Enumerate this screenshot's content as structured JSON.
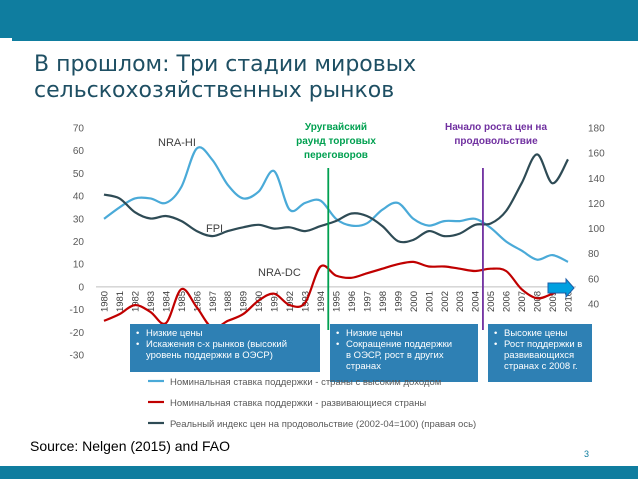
{
  "slide": {
    "title": "В прошлом: Три стадии мировых сельскохозяйственных рынков",
    "source": "Source: Nelgen (2015) and FAO",
    "page": "3"
  },
  "colors": {
    "accent": "#0f7d9f",
    "title": "#1e4f63",
    "series_high": "#4aaad8",
    "series_dev": "#c00000",
    "series_fpi": "#2e4b55",
    "annotation_green": "#00a050",
    "annotation_purple": "#7030a0",
    "box_fill": "#2e80b4"
  },
  "chart_data": {
    "type": "line",
    "x": [
      1980,
      1981,
      1982,
      1983,
      1984,
      1985,
      1986,
      1987,
      1988,
      1989,
      1990,
      1991,
      1992,
      1993,
      1994,
      1995,
      1996,
      1997,
      1998,
      1999,
      2000,
      2001,
      2002,
      2003,
      2004,
      2005,
      2006,
      2007,
      2008,
      2009,
      2010
    ],
    "x_tick_labels": [
      "1980",
      "1981",
      "1982",
      "1983",
      "1984",
      "1985",
      "1986",
      "1987",
      "1988",
      "1989",
      "1990",
      "1991",
      "1992",
      "1993",
      "1994",
      "1995",
      "1996",
      "1997",
      "1998",
      "1999",
      "2000",
      "2001",
      "2002",
      "2003",
      "2004",
      "2005",
      "2006",
      "2007",
      "2008",
      "2009",
      "2010"
    ],
    "y_left": {
      "range": [
        -30,
        70
      ],
      "ticks": [
        -30,
        -20,
        -10,
        0,
        10,
        20,
        30,
        40,
        50,
        60,
        70
      ],
      "tick_labels": [
        "-30",
        "-20",
        "-10",
        "0",
        "10",
        "20",
        "30",
        "40",
        "50",
        "60",
        "70"
      ]
    },
    "y_right": {
      "range": [
        40,
        180
      ],
      "ticks": [
        40,
        60,
        80,
        100,
        120,
        140,
        160,
        180
      ],
      "tick_labels": [
        "40",
        "60",
        "80",
        "100",
        "120",
        "140",
        "160",
        "180"
      ]
    },
    "series": [
      {
        "name": "Номинальная ставка поддержки - страны с высоким доходом",
        "axis": "left",
        "values": [
          30,
          35,
          39,
          39,
          37,
          44,
          61,
          56,
          45,
          39,
          42,
          51,
          34,
          37,
          38,
          30,
          27,
          28,
          34,
          37,
          30,
          27,
          29,
          29,
          30,
          26,
          20,
          16,
          12,
          14,
          11
        ]
      },
      {
        "name": "Номинальная ставка поддержки - развивающиеся страны",
        "axis": "left",
        "values": [
          -15,
          -12,
          -8,
          -11,
          -16,
          -1,
          -9,
          -18,
          -15,
          -12,
          -6,
          -3,
          -8,
          -7,
          9,
          5,
          4,
          6,
          8,
          10,
          11,
          9,
          9,
          8,
          7,
          8,
          7,
          -1,
          -5,
          -3,
          0
        ]
      },
      {
        "name": "Реальный индекс цен на продовольствие (2002-04=100) (правая ось)",
        "axis": "right",
        "values": [
          127,
          124,
          113,
          108,
          110,
          106,
          98,
          94,
          98,
          101,
          103,
          100,
          101,
          98,
          102,
          106,
          112,
          110,
          102,
          90,
          91,
          98,
          94,
          96,
          103,
          104,
          114,
          136,
          159,
          136,
          155
        ]
      }
    ],
    "series_labels": [
      "NRA-HI",
      "FPI",
      "NRA-DC"
    ],
    "annotations": [
      {
        "text": [
          "Уругвайский",
          "раунд торговых",
          "переговоров"
        ],
        "year": 1994.5,
        "color": "#00a050"
      },
      {
        "text": [
          "Начало роста цен на",
          "продовольствие"
        ],
        "year": 2004.5,
        "color": "#7030a0"
      }
    ],
    "bullet_boxes": [
      {
        "items": [
          "Низкие цены",
          "Искажения с-х рынков (высокий уровень поддержки в ОЭСР)"
        ]
      },
      {
        "items": [
          "Низкие цены",
          "Сокращение поддержки в ОЭСР, рост в других странах"
        ]
      },
      {
        "items": [
          "Высокие цены",
          "Рост поддержки в развивающихся странах с 2008 г."
        ]
      }
    ],
    "legend_position": "bottom"
  }
}
